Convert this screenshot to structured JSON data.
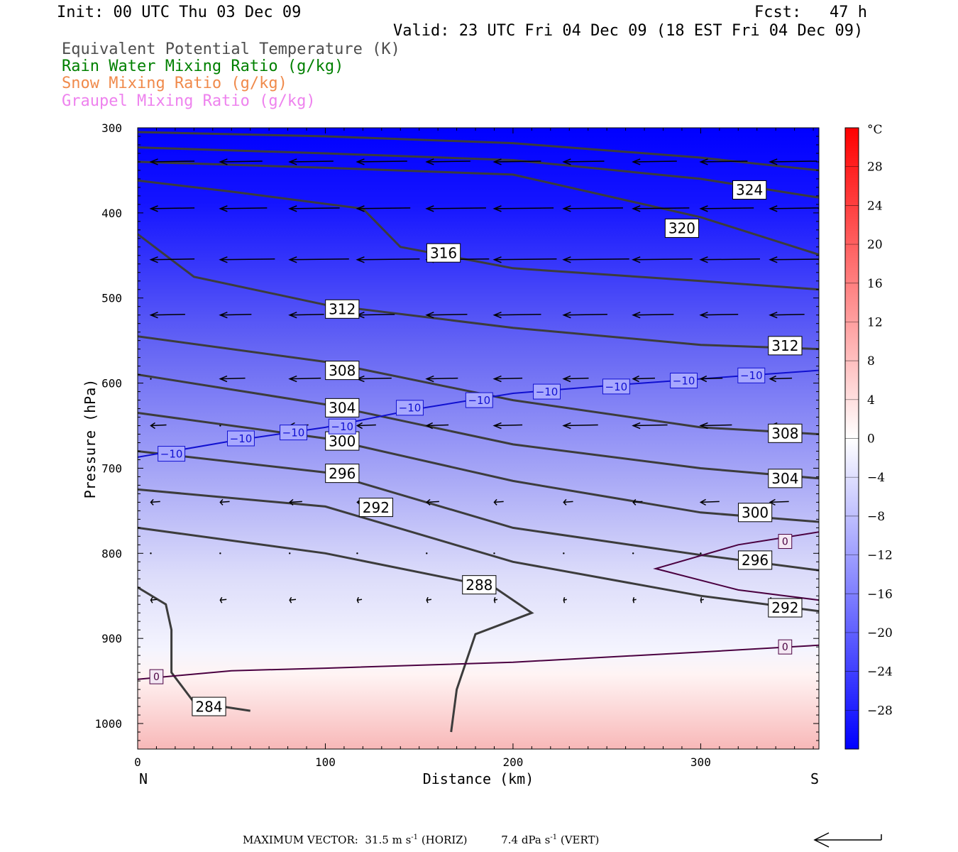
{
  "header": {
    "init": "Init: 00 UTC Thu 03 Dec 09",
    "fcst": "Fcst:   47 h",
    "valid": "Valid: 23 UTC Fri 04 Dec 09 (18 EST Fri 04 Dec 09)"
  },
  "legend": [
    {
      "label": "Equivalent Potential Temperature (K)",
      "color": "#4d4d4d"
    },
    {
      "label": "Rain Water Mixing Ratio (g/kg)",
      "color": "#008000"
    },
    {
      "label": "Snow Mixing Ratio (g/kg)",
      "color": "#f08a4b"
    },
    {
      "label": "Graupel Mixing Ratio (g/kg)",
      "color": "#ee82ee"
    }
  ],
  "footer": {
    "max_vector_label": "MAXIMUM VECTOR:",
    "horiz_value": "31.5",
    "horiz_units": "m s",
    "horiz_exp": "-1",
    "horiz_tag": "(HORIZ)",
    "vert_value": "7.4",
    "vert_units": "dPa s",
    "vert_exp": "-1",
    "vert_tag": "(VERT)"
  },
  "chart_data": {
    "type": "cross-section",
    "xlabel": "Distance (km)",
    "ylabel": "Pressure (hPa)",
    "xlim": [
      0,
      363
    ],
    "ylim": [
      1030,
      300
    ],
    "x_ticks": [
      0,
      100,
      200,
      300
    ],
    "y_ticks": [
      300,
      400,
      500,
      600,
      700,
      800,
      900,
      1000
    ],
    "x_end_labels": {
      "left": "N",
      "right": "S"
    },
    "colorbar": {
      "unit": "°C",
      "range": [
        -32,
        32
      ],
      "ticks": [
        "28",
        "24",
        "20",
        "16",
        "12",
        "8",
        "4",
        "0",
        "−4",
        "−8",
        "−12",
        "−16",
        "−20",
        "−24",
        "−28"
      ],
      "tick_values": [
        28,
        24,
        20,
        16,
        12,
        8,
        4,
        0,
        -4,
        -8,
        -12,
        -16,
        -20,
        -24,
        -28
      ],
      "cold_color": "#0000ff",
      "warm_color": "#ff0000"
    },
    "theta_e_contours": [
      {
        "level": 324,
        "label": "324",
        "points": [
          [
            0,
            305
          ],
          [
            100,
            310
          ],
          [
            200,
            318
          ],
          [
            300,
            335
          ],
          [
            363,
            350
          ]
        ]
      },
      {
        "level": 324,
        "label": "",
        "points": [
          [
            0,
            323
          ],
          [
            100,
            330
          ],
          [
            200,
            338
          ],
          [
            300,
            360
          ],
          [
            363,
            382
          ]
        ]
      },
      {
        "level": 320,
        "label": "320",
        "points": [
          [
            0,
            340
          ],
          [
            100,
            347
          ],
          [
            200,
            355
          ],
          [
            300,
            405
          ],
          [
            363,
            449
          ]
        ]
      },
      {
        "level": 316,
        "label": "316",
        "points": [
          [
            0,
            362
          ],
          [
            50,
            375
          ],
          [
            120,
            395
          ],
          [
            140,
            440
          ],
          [
            200,
            465
          ],
          [
            300,
            480
          ],
          [
            363,
            490
          ]
        ]
      },
      {
        "level": 312,
        "label": "312",
        "points": [
          [
            0,
            425
          ],
          [
            30,
            475
          ],
          [
            100,
            508
          ],
          [
            200,
            535
          ],
          [
            300,
            555
          ],
          [
            363,
            560
          ]
        ]
      },
      {
        "level": 308,
        "label": "308",
        "points": [
          [
            0,
            545
          ],
          [
            100,
            575
          ],
          [
            200,
            620
          ],
          [
            300,
            652
          ],
          [
            363,
            660
          ]
        ]
      },
      {
        "level": 304,
        "label": "304",
        "points": [
          [
            0,
            590
          ],
          [
            100,
            625
          ],
          [
            200,
            672
          ],
          [
            300,
            700
          ],
          [
            363,
            712
          ]
        ]
      },
      {
        "level": 300,
        "label": "300",
        "points": [
          [
            0,
            635
          ],
          [
            100,
            665
          ],
          [
            200,
            715
          ],
          [
            300,
            752
          ],
          [
            363,
            763
          ]
        ]
      },
      {
        "level": 296,
        "label": "296",
        "points": [
          [
            0,
            680
          ],
          [
            100,
            705
          ],
          [
            200,
            770
          ],
          [
            300,
            802
          ],
          [
            363,
            820
          ]
        ]
      },
      {
        "level": 292,
        "label": "292",
        "points": [
          [
            0,
            725
          ],
          [
            100,
            745
          ],
          [
            200,
            810
          ],
          [
            300,
            850
          ],
          [
            363,
            868
          ]
        ]
      },
      {
        "level": 288,
        "label": "288",
        "points": [
          [
            0,
            770
          ],
          [
            100,
            800
          ],
          [
            190,
            840
          ],
          [
            210,
            870
          ],
          [
            180,
            895
          ],
          [
            170,
            960
          ],
          [
            167,
            1010
          ]
        ]
      },
      {
        "level": 284,
        "label": "284",
        "points": [
          [
            0,
            840
          ],
          [
            15,
            860
          ],
          [
            18,
            890
          ],
          [
            18,
            940
          ],
          [
            30,
            975
          ],
          [
            60,
            985
          ]
        ]
      }
    ],
    "theta_e_labels": [
      {
        "label": "324",
        "x": 326,
        "p": 373
      },
      {
        "label": "320",
        "x": 290,
        "p": 418
      },
      {
        "label": "316",
        "x": 163,
        "p": 447
      },
      {
        "label": "312",
        "x": 109,
        "p": 513
      },
      {
        "label": "312",
        "x": 345,
        "p": 556
      },
      {
        "label": "308",
        "x": 109,
        "p": 585
      },
      {
        "label": "308",
        "x": 345,
        "p": 659
      },
      {
        "label": "304",
        "x": 109,
        "p": 629
      },
      {
        "label": "304",
        "x": 345,
        "p": 712
      },
      {
        "label": "300",
        "x": 109,
        "p": 668
      },
      {
        "label": "300",
        "x": 329,
        "p": 752
      },
      {
        "label": "296",
        "x": 109,
        "p": 706
      },
      {
        "label": "296",
        "x": 329,
        "p": 808
      },
      {
        "label": "292",
        "x": 127,
        "p": 746
      },
      {
        "label": "292",
        "x": 345,
        "p": 864
      },
      {
        "label": "288",
        "x": 182,
        "p": 837
      },
      {
        "label": "284",
        "x": 38,
        "p": 980
      }
    ],
    "temperature_contours": [
      {
        "level": -10,
        "label": "−10",
        "points": [
          [
            0,
            687
          ],
          [
            50,
            668
          ],
          [
            100,
            652
          ],
          [
            150,
            630
          ],
          [
            200,
            612
          ],
          [
            250,
            603
          ],
          [
            300,
            595
          ],
          [
            363,
            585
          ]
        ]
      },
      {
        "level": 0,
        "label": "0",
        "points": [
          [
            0,
            948
          ],
          [
            50,
            938
          ],
          [
            100,
            935
          ],
          [
            200,
            928
          ],
          [
            300,
            916
          ],
          [
            363,
            908
          ]
        ]
      },
      {
        "level": 0,
        "label": "",
        "points": [
          [
            363,
            775
          ],
          [
            320,
            790
          ],
          [
            276,
            818
          ],
          [
            320,
            843
          ],
          [
            363,
            855
          ]
        ]
      }
    ],
    "temperature_labels": [
      {
        "label": "−10",
        "x": 18,
        "p": 683
      },
      {
        "label": "−10",
        "x": 55,
        "p": 665
      },
      {
        "label": "−10",
        "x": 83,
        "p": 658
      },
      {
        "label": "−10",
        "x": 109,
        "p": 651
      },
      {
        "label": "−10",
        "x": 145,
        "p": 629
      },
      {
        "label": "−10",
        "x": 182,
        "p": 620
      },
      {
        "label": "−10",
        "x": 218,
        "p": 610
      },
      {
        "label": "−10",
        "x": 255,
        "p": 604
      },
      {
        "label": "−10",
        "x": 291,
        "p": 597
      },
      {
        "label": "−10",
        "x": 327,
        "p": 591
      },
      {
        "label": "0",
        "x": 10,
        "p": 945
      },
      {
        "label": "0",
        "x": 345,
        "p": 786
      },
      {
        "label": "0",
        "x": 345,
        "p": 910
      }
    ],
    "wind_vectors": {
      "x_cols": [
        7,
        44,
        81,
        117,
        154,
        190,
        227,
        264,
        300,
        337,
        363
      ],
      "rows": [
        {
          "p": 340,
          "len": [
            28,
            27,
            28,
            32,
            28,
            30,
            26,
            28,
            30,
            30,
            0
          ]
        },
        {
          "p": 395,
          "len": [
            28,
            30,
            32,
            34,
            38,
            38,
            38,
            36,
            34,
            32,
            14
          ]
        },
        {
          "p": 455,
          "len": [
            28,
            35,
            38,
            40,
            40,
            40,
            42,
            38,
            38,
            38,
            38
          ]
        },
        {
          "p": 520,
          "len": [
            22,
            20,
            22,
            24,
            26,
            30,
            28,
            26,
            24,
            22,
            0
          ]
        },
        {
          "p": 595,
          "len": [
            0,
            16,
            20,
            22,
            20,
            18,
            16,
            14,
            14,
            14,
            14
          ]
        },
        {
          "p": 650,
          "len": [
            10,
            0,
            12,
            12,
            14,
            18,
            22,
            22,
            20,
            18,
            12
          ]
        },
        {
          "p": 740,
          "len": [
            6,
            6,
            8,
            8,
            8,
            6,
            6,
            6,
            12,
            12,
            0
          ]
        },
        {
          "p": 800,
          "len": [
            0,
            0,
            0,
            0,
            0,
            0,
            0,
            0,
            0,
            0,
            0
          ]
        },
        {
          "p": 855,
          "len": [
            4,
            4,
            4,
            3,
            3,
            2,
            2,
            2,
            2,
            2,
            0
          ]
        }
      ]
    }
  }
}
